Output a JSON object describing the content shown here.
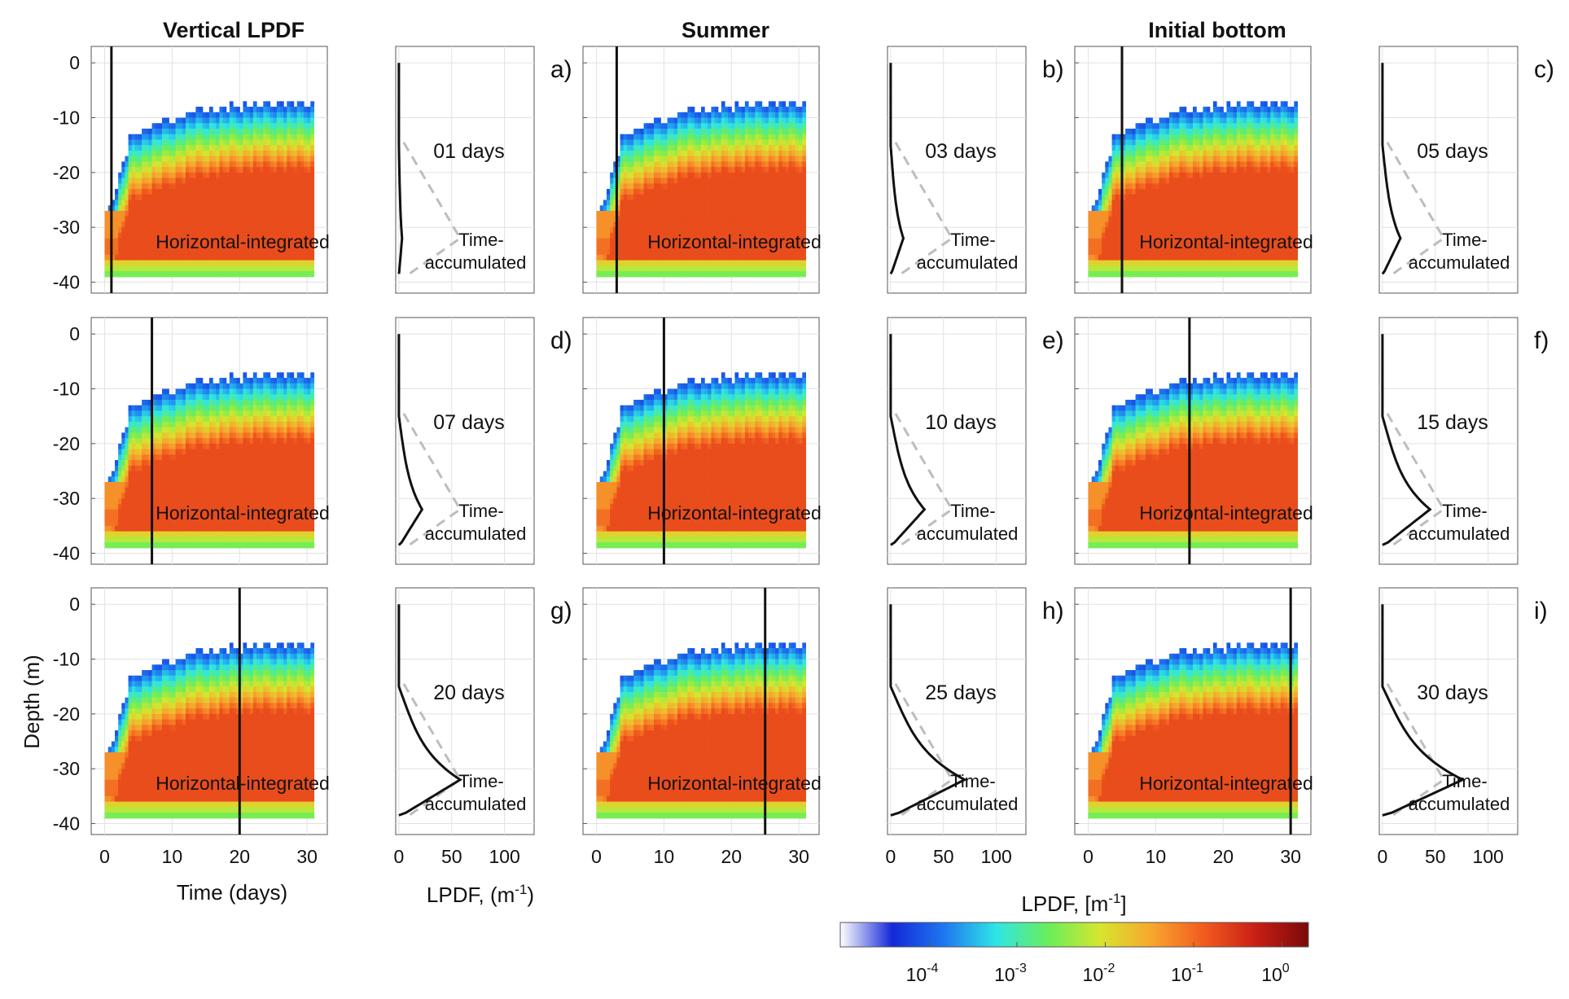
{
  "chart_data": {
    "type": "heatmap",
    "column_titles": [
      "Vertical LPDF",
      "Summer",
      "Initial bottom"
    ],
    "panels": [
      {
        "label": "a)",
        "day": 1,
        "days_text": "01 days"
      },
      {
        "label": "b)",
        "day": 3,
        "days_text": "03 days"
      },
      {
        "label": "c)",
        "day": 5,
        "days_text": "05 days"
      },
      {
        "label": "d)",
        "day": 7,
        "days_text": "07 days"
      },
      {
        "label": "e)",
        "day": 10,
        "days_text": "10 days"
      },
      {
        "label": "f)",
        "day": 15,
        "days_text": "15 days"
      },
      {
        "label": "g)",
        "day": 20,
        "days_text": "20 days"
      },
      {
        "label": "h)",
        "day": 25,
        "days_text": "25 days"
      },
      {
        "label": "i)",
        "day": 30,
        "days_text": "30 days"
      }
    ],
    "heatmap_axes": {
      "xlabel": "Time (days)",
      "ylabel": "Depth (m)",
      "xlim": [
        -2,
        33
      ],
      "ylim": [
        -42,
        3
      ],
      "xticks": [
        0,
        10,
        20,
        30
      ],
      "yticks": [
        0,
        -10,
        -20,
        -30,
        -40
      ]
    },
    "profile_axes": {
      "xlabel": "LPDF, (m",
      "xlabel_sup": "-1",
      "xlabel_end": ")",
      "xlim": [
        -3,
        128
      ],
      "xticks": [
        0,
        50,
        100
      ]
    },
    "heatmap_annotation": "Horizontal-integrated",
    "profile_annotation": [
      "Time-",
      "accumulated"
    ],
    "profile_series": [
      {
        "name": "Time-accumulated",
        "style": "dashed",
        "color": "#b9bfbd"
      },
      {
        "style": "solid",
        "color": "#111111"
      }
    ],
    "profile_peak_values": [
      3,
      12,
      17,
      22,
      32,
      45,
      58,
      70,
      76
    ],
    "colorbar": {
      "label": "LPDF, [m",
      "label_sup": "-1",
      "label_end": "]",
      "scale": "log",
      "range_log10": [
        -5,
        0.3
      ],
      "tick_bases": [
        "10",
        "10",
        "10",
        "10",
        "10"
      ],
      "tick_exponents": [
        "-4",
        "-3",
        "-2",
        "-1",
        "0"
      ],
      "tick_values_log10": [
        -4,
        -3,
        -2,
        -1,
        0
      ],
      "colormap": [
        "#ffffff",
        "#1428d8",
        "#1e78f0",
        "#2ee6e6",
        "#6aee5a",
        "#d6e62e",
        "#f7a62e",
        "#f25a1e",
        "#c81e14",
        "#7a0a0a"
      ]
    },
    "grid": true
  }
}
